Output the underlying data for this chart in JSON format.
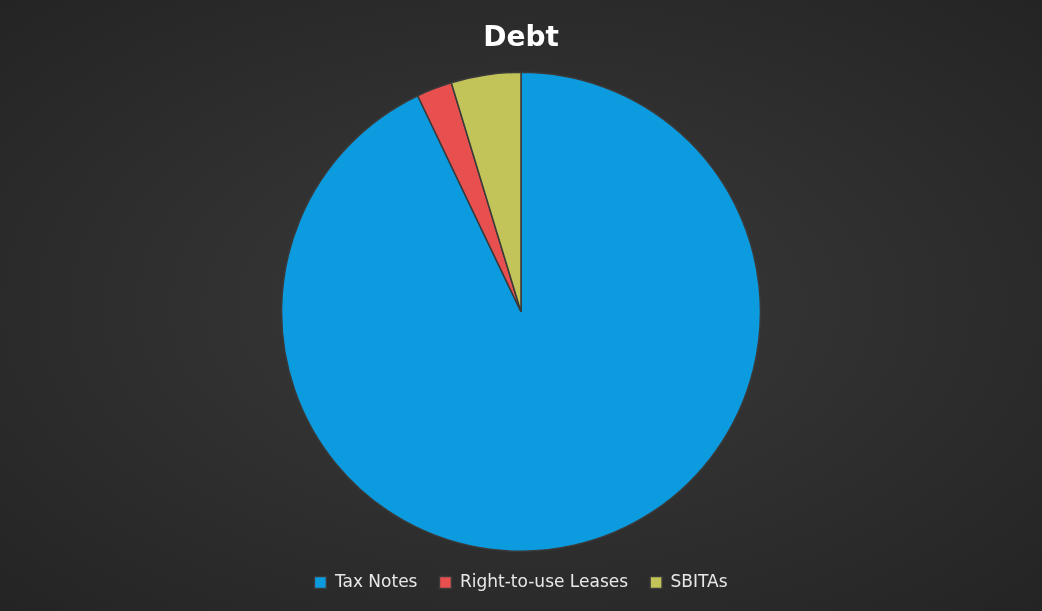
{
  "chart_data": {
    "type": "pie",
    "title": "Debt",
    "categories": [
      "Tax Notes",
      "Right-to-use Leases",
      "SBITAs"
    ],
    "values": [
      92.9,
      2.4,
      4.7
    ],
    "colors": [
      "#0d9be0",
      "#e8504f",
      "#c2c45a"
    ],
    "legend": "bottom"
  }
}
